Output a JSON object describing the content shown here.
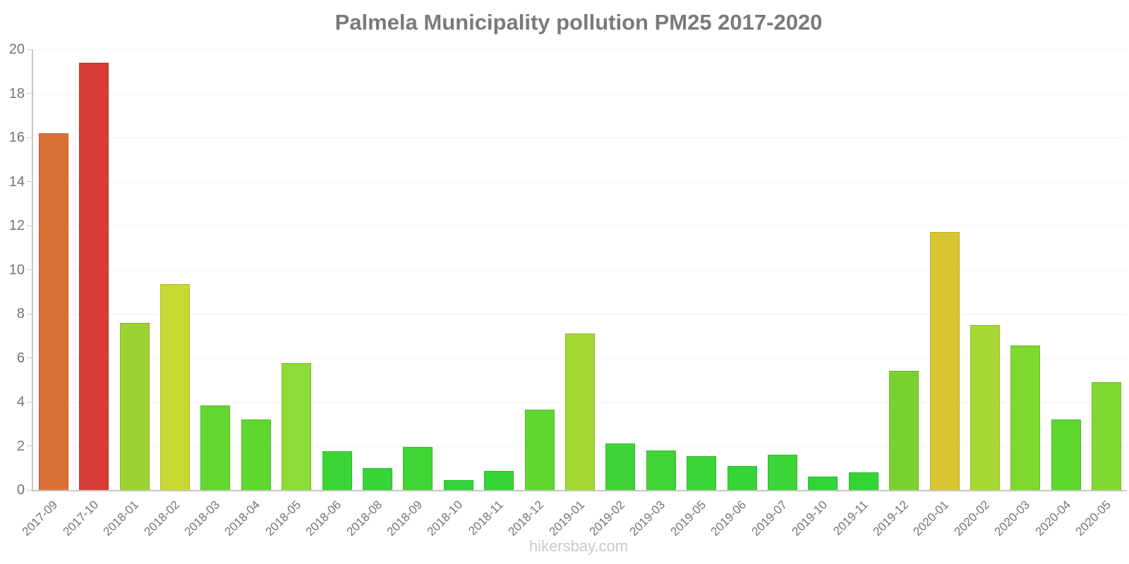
{
  "chart_data": {
    "type": "bar",
    "title": "Palmela Municipality pollution PM25 2017-2020",
    "xlabel": "",
    "ylabel": "",
    "ylim": [
      0,
      20
    ],
    "yticks": [
      0,
      2,
      4,
      6,
      8,
      10,
      12,
      14,
      16,
      18,
      20
    ],
    "grid": "horizontal-light",
    "legend": "none",
    "categories": [
      "2017-09",
      "2017-10",
      "2018-01",
      "2018-02",
      "2018-03",
      "2018-04",
      "2018-05",
      "2018-06",
      "2018-08",
      "2018-09",
      "2018-10",
      "2018-11",
      "2018-12",
      "2019-01",
      "2019-02",
      "2019-03",
      "2019-05",
      "2019-06",
      "2019-07",
      "2019-10",
      "2019-11",
      "2019-12",
      "2020-01",
      "2020-02",
      "2020-03",
      "2020-04",
      "2020-05"
    ],
    "values": [
      16.2,
      19.4,
      7.6,
      9.35,
      3.85,
      3.2,
      5.75,
      1.75,
      1.0,
      1.95,
      0.45,
      0.85,
      3.65,
      7.1,
      2.1,
      1.8,
      1.55,
      1.1,
      1.6,
      0.6,
      0.8,
      5.4,
      11.7,
      7.5,
      6.55,
      3.2,
      4.9
    ],
    "bar_colors": [
      "#DB7035",
      "#D93B36",
      "#9CD333",
      "#C9D832",
      "#63D62F",
      "#5ED72F",
      "#8CDB37",
      "#3BD438",
      "#36D436",
      "#40D536",
      "#32D437",
      "#34D436",
      "#60D630",
      "#A3D834",
      "#3ED437",
      "#41D436",
      "#3AD437",
      "#36D436",
      "#3CD437",
      "#33D437",
      "#34D437",
      "#7AD231",
      "#D8C733",
      "#A6D933",
      "#7DD930",
      "#5ED72F",
      "#80D932"
    ]
  },
  "footer": {
    "text": "hikersbay.com"
  },
  "style": {
    "background": "#ffffff",
    "title_color": "#7a7a7a",
    "axis_color": "#c6c6c6",
    "grid_color": "#f3f3f3",
    "tick_label_color": "#757575",
    "footer_color": "#c9c9c9"
  }
}
